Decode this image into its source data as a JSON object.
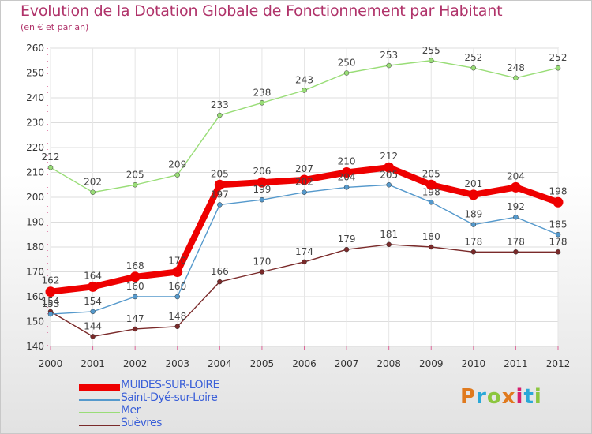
{
  "title": "Evolution de la Dotation Globale de Fonctionnement par Habitant",
  "subtitle": "(en € et par an)",
  "logo": {
    "text": "Proxiti",
    "colors": [
      "#e07a1e",
      "#2aa8d8",
      "#8cc63f",
      "#e07a1e",
      "#d61f6e",
      "#2aa8d8",
      "#8cc63f"
    ]
  },
  "chart_data": {
    "type": "line",
    "categories": [
      "2000",
      "2001",
      "2002",
      "2003",
      "2004",
      "2005",
      "2006",
      "2007",
      "2008",
      "2009",
      "2010",
      "2011",
      "2012"
    ],
    "ylim": [
      140,
      260
    ],
    "yticks": [
      "140",
      "150",
      "160",
      "170",
      "180",
      "190",
      "200",
      "210",
      "220",
      "230",
      "240",
      "250",
      "260"
    ],
    "grid": true,
    "legend_position": "bottom-left",
    "series": [
      {
        "name": "Mer",
        "color": "#99dd77",
        "values": [
          212,
          202,
          205,
          209,
          233,
          238,
          243,
          250,
          253,
          255,
          252,
          248,
          252
        ]
      },
      {
        "name": "Suèvres",
        "color": "#7a2a2a",
        "values": [
          154,
          144,
          147,
          148,
          166,
          170,
          174,
          179,
          181,
          180,
          178,
          178,
          178
        ]
      },
      {
        "name": "Saint-Dyé-sur-Loire",
        "color": "#5599cc",
        "values": [
          153,
          154,
          160,
          160,
          197,
          199,
          202,
          204,
          205,
          198,
          189,
          192,
          185
        ]
      },
      {
        "name": "MUIDES-SUR-LOIRE",
        "color": "#ee0000",
        "values": [
          162,
          164,
          168,
          170,
          205,
          206,
          207,
          210,
          212,
          205,
          201,
          204,
          198
        ]
      }
    ],
    "legend": [
      "MUIDES-SUR-LOIRE",
      "Saint-Dyé-sur-Loire",
      "Mer",
      "Suèvres"
    ]
  }
}
